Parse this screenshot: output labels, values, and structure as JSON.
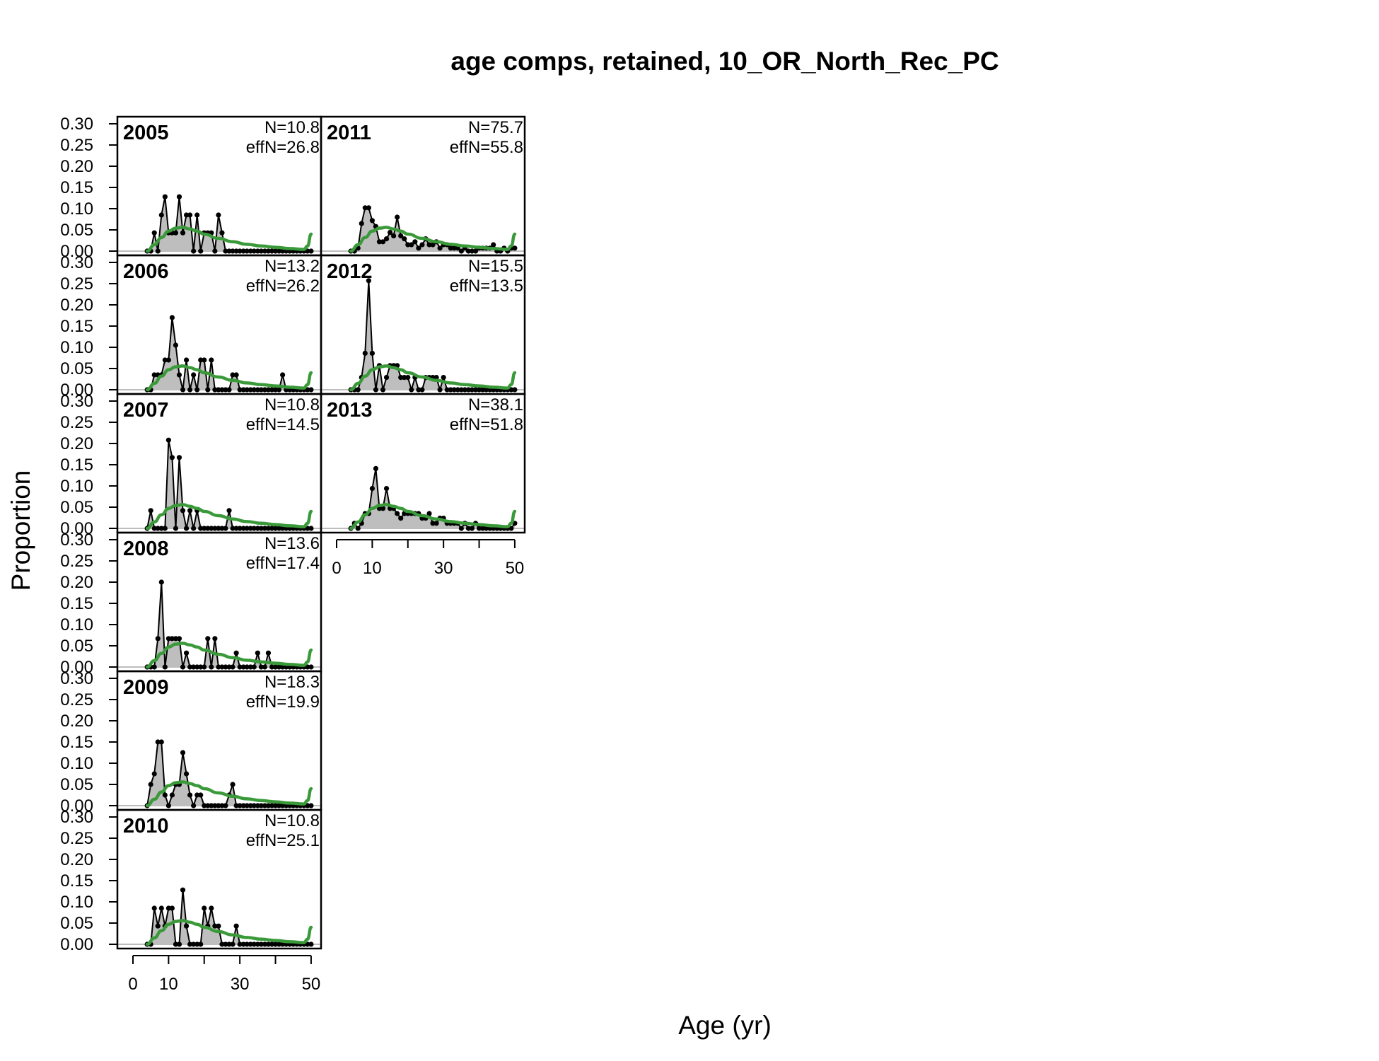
{
  "chart_data": {
    "type": "area",
    "title": "age comps, retained, 10_OR_North_Rec_PC",
    "xlabel": "Age (yr)",
    "ylabel": "Proportion",
    "xlim": [
      0,
      52
    ],
    "ylim": [
      0,
      0.3
    ],
    "x_ticks": [
      0,
      10,
      30,
      50
    ],
    "y_ticks": [
      "0.00",
      "0.05",
      "0.10",
      "0.15",
      "0.20",
      "0.25",
      "0.30"
    ],
    "colors": {
      "observed_fill": "#bebebe",
      "observed_line": "#000000",
      "expected_line": "#3a9a3a"
    },
    "legend": "none",
    "grid": false,
    "expected": {
      "x": [
        4,
        6,
        8,
        10,
        12,
        14,
        16,
        18,
        20,
        24,
        28,
        32,
        36,
        40,
        44,
        48,
        49,
        50
      ],
      "y": [
        0.0,
        0.015,
        0.032,
        0.047,
        0.054,
        0.056,
        0.052,
        0.047,
        0.04,
        0.03,
        0.022,
        0.016,
        0.012,
        0.009,
        0.006,
        0.004,
        0.012,
        0.04
      ]
    },
    "panels": [
      {
        "year": "2005",
        "n_label": "N=10.8",
        "effn_label": "effN=26.8",
        "x": [
          4,
          5,
          6,
          7,
          8,
          9,
          10,
          11,
          12,
          13,
          14,
          15,
          16,
          17,
          18,
          19,
          20,
          21,
          22,
          23,
          24,
          25,
          26,
          27,
          28,
          29,
          30,
          31,
          32,
          33,
          34,
          35,
          36,
          37,
          38,
          39,
          40,
          41,
          42,
          43,
          44,
          45,
          46,
          47,
          48,
          49,
          50
        ],
        "y": [
          0,
          0,
          0.043,
          0,
          0.085,
          0.128,
          0.043,
          0.043,
          0.043,
          0.128,
          0.043,
          0.085,
          0.085,
          0,
          0.085,
          0,
          0.043,
          0.043,
          0.043,
          0,
          0.085,
          0.043,
          0,
          0,
          0,
          0,
          0,
          0,
          0,
          0,
          0,
          0,
          0,
          0,
          0,
          0,
          0,
          0,
          0,
          0,
          0,
          0,
          0,
          0,
          0,
          0,
          0
        ]
      },
      {
        "year": "2006",
        "n_label": "N=13.2",
        "effn_label": "effN=26.2",
        "x": [
          4,
          5,
          6,
          7,
          8,
          9,
          10,
          11,
          12,
          13,
          14,
          15,
          16,
          17,
          18,
          19,
          20,
          21,
          22,
          23,
          24,
          25,
          26,
          27,
          28,
          29,
          30,
          31,
          32,
          33,
          34,
          35,
          36,
          37,
          38,
          39,
          40,
          41,
          42,
          43,
          44,
          45,
          46,
          47,
          48,
          49,
          50
        ],
        "y": [
          0,
          0,
          0.035,
          0.035,
          0.035,
          0.07,
          0.07,
          0.17,
          0.105,
          0.035,
          0,
          0.07,
          0,
          0.035,
          0,
          0.07,
          0.07,
          0,
          0.07,
          0,
          0,
          0,
          0,
          0,
          0.035,
          0.035,
          0,
          0,
          0,
          0,
          0,
          0,
          0,
          0,
          0,
          0,
          0,
          0,
          0.035,
          0,
          0,
          0,
          0,
          0,
          0,
          0,
          0
        ]
      },
      {
        "year": "2007",
        "n_label": "N=10.8",
        "effn_label": "effN=14.5",
        "x": [
          4,
          5,
          6,
          7,
          8,
          9,
          10,
          11,
          12,
          13,
          14,
          15,
          16,
          17,
          18,
          19,
          20,
          21,
          22,
          23,
          24,
          25,
          26,
          27,
          28,
          29,
          30,
          31,
          32,
          33,
          34,
          35,
          36,
          37,
          38,
          39,
          40,
          41,
          42,
          43,
          44,
          45,
          46,
          47,
          48,
          49,
          50
        ],
        "y": [
          0,
          0.042,
          0,
          0,
          0,
          0,
          0.208,
          0.167,
          0,
          0.167,
          0.042,
          0,
          0.042,
          0,
          0.042,
          0,
          0,
          0,
          0,
          0,
          0,
          0,
          0,
          0.042,
          0,
          0,
          0,
          0,
          0,
          0,
          0,
          0,
          0,
          0,
          0,
          0,
          0,
          0,
          0,
          0,
          0,
          0,
          0,
          0,
          0,
          0,
          0
        ]
      },
      {
        "year": "2008",
        "n_label": "N=13.6",
        "effn_label": "effN=17.4",
        "x": [
          4,
          5,
          6,
          7,
          8,
          9,
          10,
          11,
          12,
          13,
          14,
          15,
          16,
          17,
          18,
          19,
          20,
          21,
          22,
          23,
          24,
          25,
          26,
          27,
          28,
          29,
          30,
          31,
          32,
          33,
          34,
          35,
          36,
          37,
          38,
          39,
          40,
          41,
          42,
          43,
          44,
          45,
          46,
          47,
          48,
          49,
          50
        ],
        "y": [
          0,
          0,
          0,
          0.067,
          0.2,
          0,
          0.067,
          0.067,
          0.067,
          0.067,
          0,
          0.033,
          0,
          0,
          0,
          0,
          0,
          0.067,
          0,
          0.067,
          0,
          0,
          0,
          0,
          0,
          0.033,
          0,
          0,
          0,
          0,
          0,
          0.033,
          0,
          0,
          0.033,
          0,
          0,
          0,
          0,
          0,
          0,
          0,
          0,
          0,
          0,
          0,
          0
        ]
      },
      {
        "year": "2009",
        "n_label": "N=18.3",
        "effn_label": "effN=19.9",
        "x": [
          4,
          5,
          6,
          7,
          8,
          9,
          10,
          11,
          12,
          13,
          14,
          15,
          16,
          17,
          18,
          19,
          20,
          21,
          22,
          23,
          24,
          25,
          26,
          27,
          28,
          29,
          30,
          31,
          32,
          33,
          34,
          35,
          36,
          37,
          38,
          39,
          40,
          41,
          42,
          43,
          44,
          45,
          46,
          47,
          48,
          49,
          50
        ],
        "y": [
          0,
          0.05,
          0.075,
          0.15,
          0.15,
          0.025,
          0,
          0.025,
          0.05,
          0.05,
          0.125,
          0.075,
          0.025,
          0,
          0.025,
          0.025,
          0,
          0,
          0,
          0,
          0,
          0,
          0,
          0.025,
          0.05,
          0,
          0,
          0,
          0,
          0,
          0,
          0,
          0,
          0,
          0,
          0,
          0,
          0,
          0,
          0,
          0,
          0,
          0,
          0,
          0,
          0,
          0
        ]
      },
      {
        "year": "2010",
        "n_label": "N=10.8",
        "effn_label": "effN=25.1",
        "x": [
          4,
          5,
          6,
          7,
          8,
          9,
          10,
          11,
          12,
          13,
          14,
          15,
          16,
          17,
          18,
          19,
          20,
          21,
          22,
          23,
          24,
          25,
          26,
          27,
          28,
          29,
          30,
          31,
          32,
          33,
          34,
          35,
          36,
          37,
          38,
          39,
          40,
          41,
          42,
          43,
          44,
          45,
          46,
          47,
          48,
          49,
          50
        ],
        "y": [
          0,
          0,
          0.085,
          0.043,
          0.085,
          0.043,
          0.085,
          0.085,
          0,
          0,
          0.128,
          0.043,
          0,
          0,
          0,
          0,
          0.085,
          0.043,
          0.085,
          0.043,
          0.043,
          0,
          0,
          0,
          0,
          0.043,
          0,
          0,
          0,
          0,
          0,
          0,
          0,
          0,
          0,
          0,
          0,
          0,
          0,
          0,
          0,
          0,
          0,
          0,
          0,
          0,
          0
        ]
      },
      {
        "year": "2011",
        "n_label": "N=75.7",
        "effn_label": "effN=55.8",
        "x": [
          4,
          5,
          6,
          7,
          8,
          9,
          10,
          11,
          12,
          13,
          14,
          15,
          16,
          17,
          18,
          19,
          20,
          21,
          22,
          23,
          24,
          25,
          26,
          27,
          28,
          29,
          30,
          31,
          32,
          33,
          34,
          35,
          36,
          37,
          38,
          39,
          40,
          41,
          42,
          43,
          44,
          45,
          46,
          47,
          48,
          49,
          50
        ],
        "y": [
          0,
          0,
          0.007,
          0.065,
          0.102,
          0.102,
          0.072,
          0.058,
          0.022,
          0.022,
          0.029,
          0.044,
          0.036,
          0.08,
          0.036,
          0.029,
          0.015,
          0.015,
          0.022,
          0.007,
          0.015,
          0.029,
          0.015,
          0.015,
          0.022,
          0.007,
          0.015,
          0.015,
          0.007,
          0.007,
          0.007,
          0,
          0.007,
          0,
          0,
          0,
          0.007,
          0.007,
          0.007,
          0.007,
          0.015,
          0,
          0,
          0.007,
          0,
          0.007,
          0.007
        ]
      },
      {
        "year": "2012",
        "n_label": "N=15.5",
        "effn_label": "effN=13.5",
        "x": [
          4,
          5,
          6,
          7,
          8,
          9,
          10,
          11,
          12,
          13,
          14,
          15,
          16,
          17,
          18,
          19,
          20,
          21,
          22,
          23,
          24,
          25,
          26,
          27,
          28,
          29,
          30,
          31,
          32,
          33,
          34,
          35,
          36,
          37,
          38,
          39,
          40,
          41,
          42,
          43,
          44,
          45,
          46,
          47,
          48,
          49,
          50
        ],
        "y": [
          0,
          0,
          0,
          0.029,
          0.086,
          0.257,
          0.086,
          0,
          0.057,
          0,
          0.029,
          0.057,
          0.057,
          0.057,
          0.029,
          0.029,
          0.029,
          0,
          0.029,
          0,
          0,
          0.029,
          0.029,
          0.029,
          0.029,
          0,
          0.029,
          0,
          0,
          0,
          0,
          0,
          0,
          0,
          0,
          0,
          0,
          0,
          0,
          0,
          0,
          0,
          0,
          0,
          0,
          0,
          0
        ]
      },
      {
        "year": "2013",
        "n_label": "N=38.1",
        "effn_label": "effN=51.8",
        "x": [
          4,
          5,
          6,
          7,
          8,
          9,
          10,
          11,
          12,
          13,
          14,
          15,
          16,
          17,
          18,
          19,
          20,
          21,
          22,
          23,
          24,
          25,
          26,
          27,
          28,
          29,
          30,
          31,
          32,
          33,
          34,
          35,
          36,
          37,
          38,
          39,
          40,
          41,
          42,
          43,
          44,
          45,
          46,
          47,
          48,
          49,
          50
        ],
        "y": [
          0,
          0.012,
          0.0,
          0.012,
          0.035,
          0.035,
          0.094,
          0.141,
          0.047,
          0.047,
          0.094,
          0.047,
          0.047,
          0.035,
          0.024,
          0.035,
          0.035,
          0.035,
          0.035,
          0.035,
          0.024,
          0.024,
          0.035,
          0.012,
          0.012,
          0.024,
          0.024,
          0.012,
          0.012,
          0.012,
          0.012,
          0,
          0.012,
          0,
          0,
          0.012,
          0,
          0,
          0,
          0,
          0,
          0,
          0,
          0,
          0,
          0,
          0.012
        ]
      }
    ]
  }
}
